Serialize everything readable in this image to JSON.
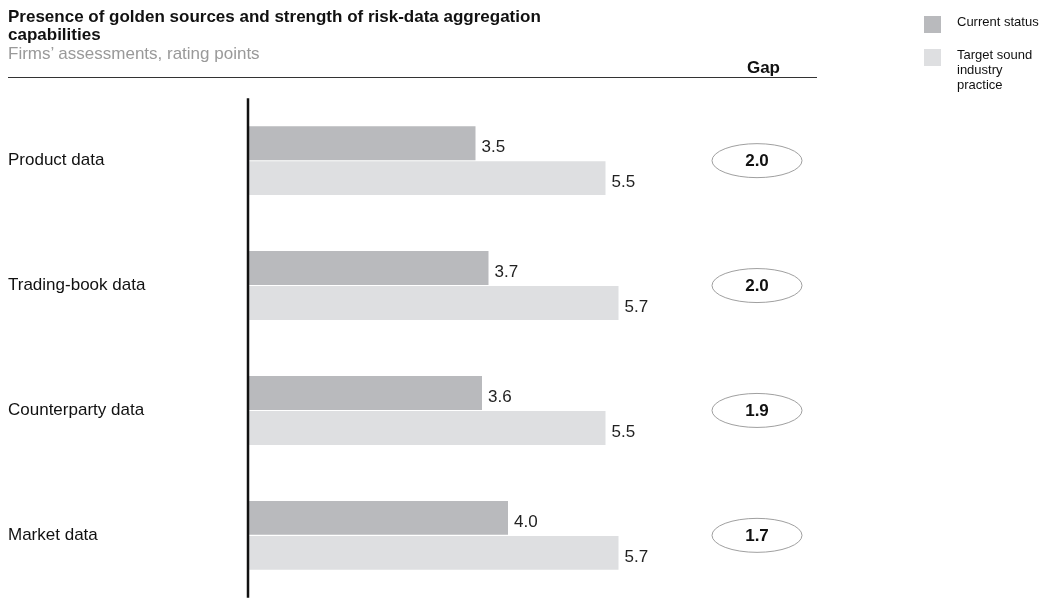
{
  "chart_data": {
    "type": "bar",
    "orientation": "horizontal",
    "title": "Presence of golden sources and strength of risk-data aggregation capabilities",
    "subtitle": "Firms’ assessments, rating points",
    "categories": [
      "Product data",
      "Trading-book data",
      "Counterparty data",
      "Market data"
    ],
    "series": [
      {
        "name": "Current status",
        "color": "#b9babd",
        "values": [
          3.5,
          3.7,
          3.6,
          4.0
        ],
        "value_labels": [
          "3.5",
          "3.7",
          "3.6",
          "4.0"
        ]
      },
      {
        "name": "Target sound industry practice",
        "color": "#dedfe1",
        "values": [
          5.5,
          5.7,
          5.5,
          5.7
        ],
        "value_labels": [
          "5.5",
          "5.7",
          "5.5",
          "5.7"
        ]
      }
    ],
    "legend": "top right",
    "annotations": [
      "Gap",
      "2.0",
      "2.0",
      "1.9",
      "1.7"
    ]
  }
}
